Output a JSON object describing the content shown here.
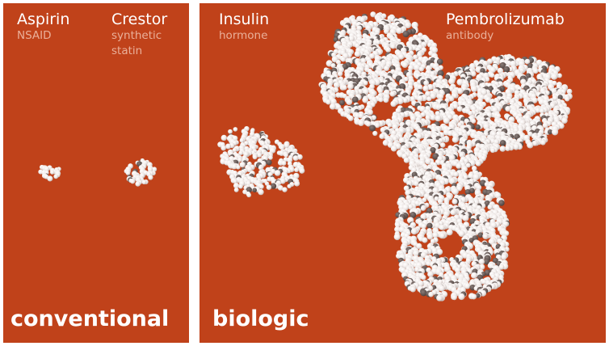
{
  "colors": {
    "panel_bg": "#c0421a",
    "atom_light": "#f2ecea",
    "atom_mid": "#bdb3b0",
    "atom_dark": "#4a3d3a",
    "class_text": "#eab09a"
  },
  "panels": {
    "conventional": {
      "category_label": "conventional",
      "molecules": [
        {
          "name": "Aspirin",
          "class": "NSAID"
        },
        {
          "name": "Crestor",
          "class_line1": "synthetic",
          "class_line2": "statin"
        }
      ]
    },
    "biologic": {
      "category_label": "biologic",
      "molecules": [
        {
          "name": "Insulin",
          "class": "hormone"
        },
        {
          "name": "Pembrolizumab",
          "class": "antibody"
        }
      ]
    }
  }
}
